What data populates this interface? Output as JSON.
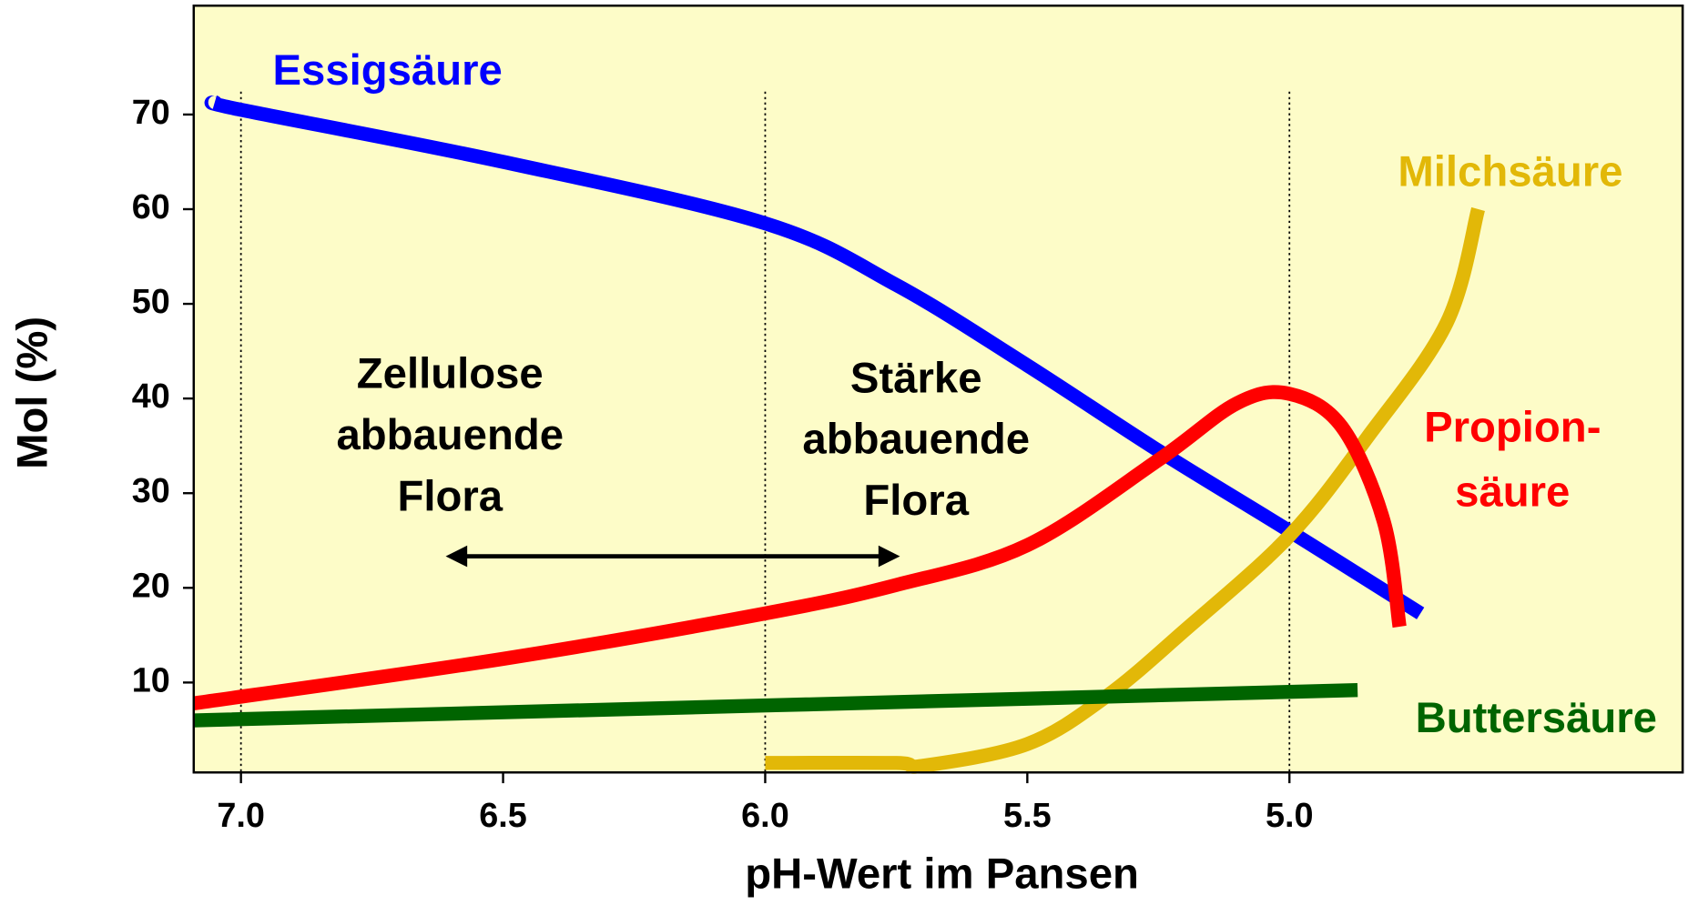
{
  "chart_data": {
    "type": "line",
    "x_label": "pH-Wert im Pansen",
    "y_label": "Mol (%)",
    "xlim": [
      7.09,
      4.25
    ],
    "ylim": [
      0.5,
      81.5
    ],
    "xticks": [
      {
        "value": 7,
        "label": "7.0"
      },
      6.5,
      {
        "value": 6,
        "label": "6.0"
      },
      5.5,
      {
        "value": 5,
        "label": "5.0"
      }
    ],
    "yticks": [
      10,
      20,
      30,
      40,
      50,
      60,
      70
    ],
    "background": "#fdfcc8",
    "series": [
      {
        "name": "Essigsäure",
        "color": "#0000ff",
        "x": [
          7.05,
          7.0,
          6.5,
          6.0,
          5.75,
          5.5,
          5.25,
          5.0,
          4.75
        ],
        "values": [
          71.3,
          70.5,
          65,
          58.5,
          52,
          43.5,
          34.5,
          26,
          17.3
        ]
      },
      {
        "name": "Milchsäure",
        "color": "#e2b808",
        "x": [
          6.0,
          5.75,
          5.7,
          5.5,
          5.35,
          5.2,
          5.0,
          4.85,
          4.7,
          4.64
        ],
        "values": [
          1.5,
          1.5,
          1.2,
          3.5,
          8.5,
          15.5,
          25.5,
          36,
          48,
          60
        ]
      },
      {
        "name_lines": [
          "Propion-",
          "säure"
        ],
        "color": "#ff0000",
        "x": [
          7.09,
          6.5,
          6.0,
          5.75,
          5.5,
          5.25,
          5.1,
          5.0,
          4.9,
          4.82,
          4.79
        ],
        "values": [
          7.8,
          12.5,
          17.3,
          20.3,
          24.5,
          33.5,
          39.5,
          40.5,
          37,
          27,
          15.9
        ]
      },
      {
        "name": "Buttersäure",
        "color": "#006400",
        "x": [
          7.09,
          4.87
        ],
        "values": [
          6.0,
          9.2
        ]
      }
    ],
    "annotations": [
      {
        "lines": [
          "Zellulose",
          "abbauende",
          "Flora"
        ]
      },
      {
        "lines": [
          "Stärke",
          "abbauende",
          "Flora"
        ]
      }
    ]
  }
}
